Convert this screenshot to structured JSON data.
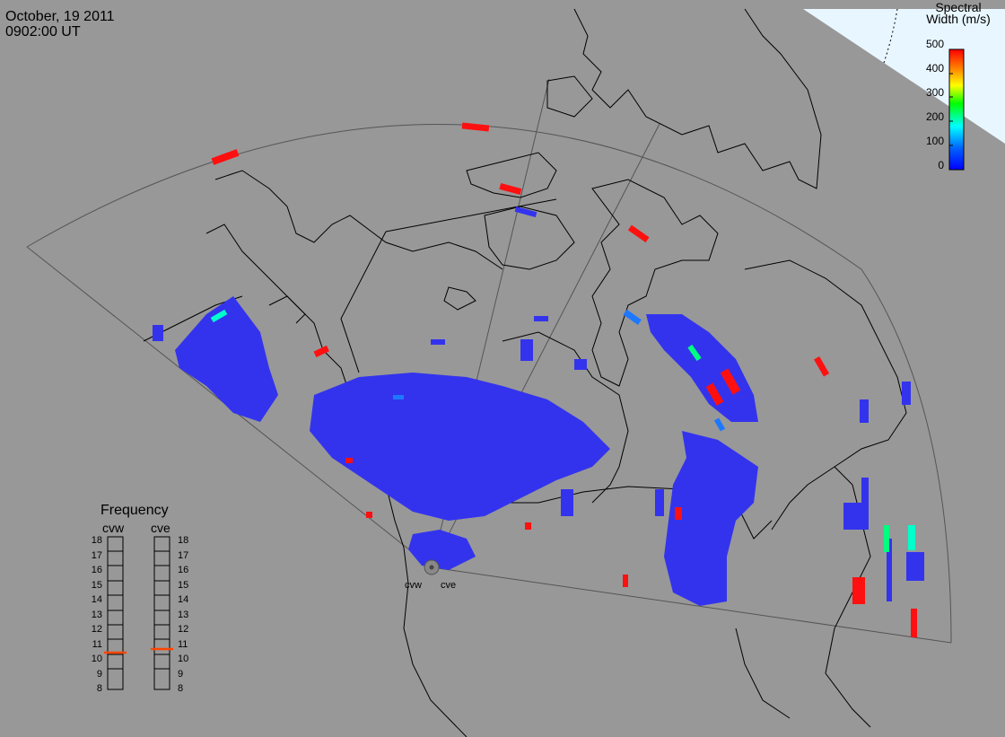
{
  "header": {
    "date": "October, 19 2011",
    "time": "0902:00 UT"
  },
  "colorbar": {
    "title_line1": "Spectral",
    "title_line2": "Width (m/s)",
    "ticks": [
      "500",
      "400",
      "300",
      "200",
      "100",
      "0"
    ],
    "colors": [
      "#ff0000",
      "#ff8c00",
      "#ffff00",
      "#00ff00",
      "#00ffff",
      "#0064ff",
      "#0000ff"
    ]
  },
  "frequency": {
    "title": "Frequency",
    "radars": [
      {
        "code": "cvw",
        "selected_mhz": 10.6
      },
      {
        "code": "cve",
        "selected_mhz": 10.8
      }
    ],
    "scale": [
      "18",
      "17",
      "16",
      "15",
      "14",
      "13",
      "12",
      "11",
      "10",
      "9",
      "8"
    ],
    "marker_color": "#ff4500"
  },
  "radars": {
    "west": "cvw",
    "east": "cve"
  },
  "colors": {
    "background": "#989898",
    "echo": "#3333ee",
    "high_width": "#ff1010",
    "mid_width": "#00ff80",
    "low_mid": "#1e78ff",
    "teal": "#00ffcc",
    "sky": "#e8f6ff"
  }
}
